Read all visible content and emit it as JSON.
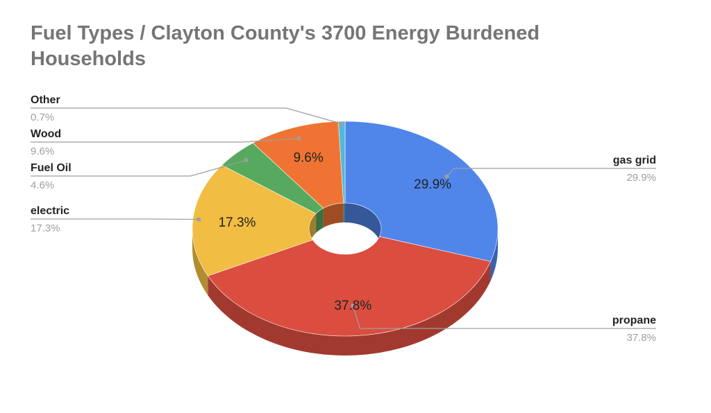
{
  "chart_data": {
    "type": "pie",
    "title": "Fuel Types / Clayton County's 3700 Energy Burdened Households",
    "slices": [
      {
        "name": "gas grid",
        "value": 29.9,
        "label": "29.9%",
        "color": "#5086ea"
      },
      {
        "name": "propane",
        "value": 37.8,
        "label": "37.8%",
        "color": "#db4d3f"
      },
      {
        "name": "electric",
        "value": 17.3,
        "label": "17.3%",
        "color": "#f1bd42"
      },
      {
        "name": "Fuel Oil",
        "value": 4.6,
        "label": "4.6%",
        "color": "#57a95f"
      },
      {
        "name": "Wood",
        "value": 9.6,
        "label": "9.6%",
        "color": "#ef7433"
      },
      {
        "name": "Other",
        "value": 0.7,
        "label": "0.7%",
        "color": "#52b9d9"
      }
    ],
    "donut": true,
    "three_d": true,
    "legend": "labeled-callouts"
  }
}
